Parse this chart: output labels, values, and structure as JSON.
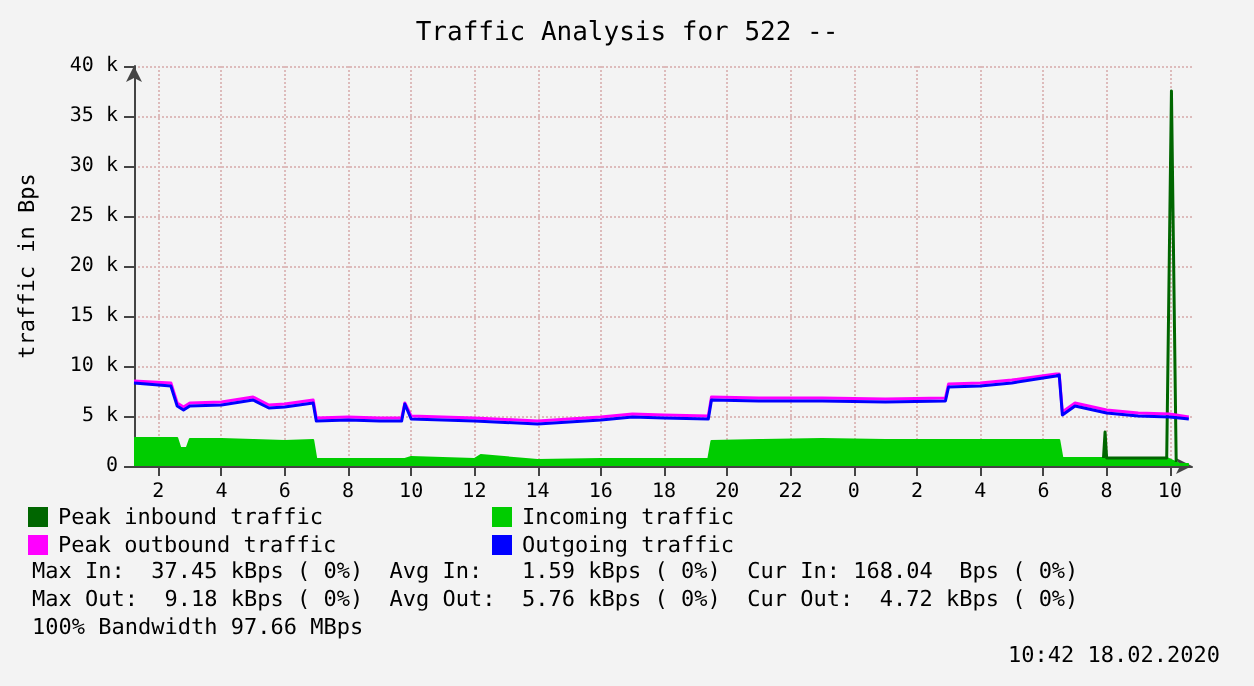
{
  "chart_data": {
    "type": "line",
    "title": "Traffic Analysis for 522 --",
    "ylabel": "traffic in Bps",
    "xlim": [
      "2020-02-17T01:14",
      "2020-02-18T10:42"
    ],
    "xticks": [
      {
        "value": "2020-02-17T02:00",
        "label": "2"
      },
      {
        "value": "2020-02-17T04:00",
        "label": "4"
      },
      {
        "value": "2020-02-17T06:00",
        "label": "6"
      },
      {
        "value": "2020-02-17T08:00",
        "label": "8"
      },
      {
        "value": "2020-02-17T10:00",
        "label": "10"
      },
      {
        "value": "2020-02-17T12:00",
        "label": "12"
      },
      {
        "value": "2020-02-17T14:00",
        "label": "14"
      },
      {
        "value": "2020-02-17T16:00",
        "label": "16"
      },
      {
        "value": "2020-02-17T18:00",
        "label": "18"
      },
      {
        "value": "2020-02-17T20:00",
        "label": "20"
      },
      {
        "value": "2020-02-17T22:00",
        "label": "22"
      },
      {
        "value": "2020-02-18T00:00",
        "label": "0"
      },
      {
        "value": "2020-02-18T02:00",
        "label": "2"
      },
      {
        "value": "2020-02-18T04:00",
        "label": "4"
      },
      {
        "value": "2020-02-18T06:00",
        "label": "6"
      },
      {
        "value": "2020-02-18T08:00",
        "label": "8"
      },
      {
        "value": "2020-02-18T10:00",
        "label": "10"
      }
    ],
    "ylim": [
      0,
      40000
    ],
    "yticks": [
      0,
      {
        "value": 5000,
        "label": "5 k"
      },
      {
        "value": 10000,
        "label": "10 k"
      },
      {
        "value": 15000,
        "label": "15 k"
      },
      {
        "value": 20000,
        "label": "20 k"
      },
      {
        "value": 25000,
        "label": "25 k"
      },
      {
        "value": 30000,
        "label": "30 k"
      },
      {
        "value": 35000,
        "label": "35 k"
      },
      {
        "value": 40000,
        "label": "40 k"
      }
    ],
    "grid": true,
    "legend": "bottom",
    "marker": "none",
    "series": [
      {
        "name": "Incoming traffic",
        "type": "area",
        "color": "#00cc00",
        "x": [
          "2020-02-17T01:14",
          "2020-02-17T02:36",
          "2020-02-17T02:42",
          "2020-02-17T02:54",
          "2020-02-17T03:00",
          "2020-02-17T04:00",
          "2020-02-17T05:00",
          "2020-02-17T06:00",
          "2020-02-17T06:54",
          "2020-02-17T07:00",
          "2020-02-17T09:00",
          "2020-02-17T09:48",
          "2020-02-17T10:00",
          "2020-02-17T12:00",
          "2020-02-17T12:12",
          "2020-02-17T14:00",
          "2020-02-17T16:00",
          "2020-02-17T18:00",
          "2020-02-17T19:24",
          "2020-02-17T19:30",
          "2020-02-17T21:00",
          "2020-02-17T23:00",
          "2020-02-18T01:00",
          "2020-02-18T03:00",
          "2020-02-18T05:00",
          "2020-02-18T06:30",
          "2020-02-18T06:36",
          "2020-02-18T07:54",
          "2020-02-18T09:00",
          "2020-02-18T09:54",
          "2020-02-18T10:18",
          "2020-02-18T10:36"
        ],
        "values": [
          2800,
          2800,
          1800,
          1800,
          2700,
          2700,
          2600,
          2500,
          2600,
          700,
          700,
          700,
          900,
          700,
          1100,
          600,
          700,
          700,
          700,
          2500,
          2600,
          2700,
          2600,
          2600,
          2600,
          2600,
          800,
          800,
          700,
          800,
          200,
          200
        ]
      },
      {
        "name": "Peak inbound traffic",
        "color": "#006600",
        "x": [
          "2020-02-18T07:54",
          "2020-02-18T07:57",
          "2020-02-18T08:00",
          "2020-02-18T09:54",
          "2020-02-18T10:03",
          "2020-02-18T10:12"
        ],
        "values": [
          800,
          3400,
          800,
          800,
          37500,
          400
        ]
      },
      {
        "name": "Peak outbound traffic",
        "color": "#ff00ff",
        "x": [
          "2020-02-17T01:14",
          "2020-02-17T02:24",
          "2020-02-17T02:36",
          "2020-02-17T02:48",
          "2020-02-17T03:00",
          "2020-02-17T04:00",
          "2020-02-17T05:00",
          "2020-02-17T05:30",
          "2020-02-17T06:00",
          "2020-02-17T06:54",
          "2020-02-17T07:00",
          "2020-02-17T08:00",
          "2020-02-17T09:00",
          "2020-02-17T09:42",
          "2020-02-17T09:48",
          "2020-02-17T10:00",
          "2020-02-17T12:00",
          "2020-02-17T14:00",
          "2020-02-17T16:00",
          "2020-02-17T17:00",
          "2020-02-17T18:00",
          "2020-02-17T19:24",
          "2020-02-17T19:30",
          "2020-02-17T21:00",
          "2020-02-17T23:00",
          "2020-02-18T01:00",
          "2020-02-18T02:54",
          "2020-02-18T03:00",
          "2020-02-18T04:00",
          "2020-02-18T05:00",
          "2020-02-18T06:24",
          "2020-02-18T06:30",
          "2020-02-18T06:36",
          "2020-02-18T07:00",
          "2020-02-18T08:00",
          "2020-02-18T09:00",
          "2020-02-18T10:00",
          "2020-02-18T10:36"
        ],
        "values": [
          8500,
          8300,
          6300,
          5900,
          6300,
          6400,
          6900,
          6100,
          6200,
          6600,
          4800,
          4900,
          4800,
          4800,
          6300,
          5000,
          4800,
          4500,
          4900,
          5200,
          5100,
          5000,
          6900,
          6800,
          6800,
          6700,
          6800,
          8200,
          8300,
          8600,
          9200,
          9200,
          5400,
          6300,
          5600,
          5300,
          5200,
          4900
        ]
      },
      {
        "name": "Outgoing traffic",
        "color": "#0000ff",
        "x": [
          "2020-02-17T01:14",
          "2020-02-17T02:24",
          "2020-02-17T02:36",
          "2020-02-17T02:48",
          "2020-02-17T03:00",
          "2020-02-17T04:00",
          "2020-02-17T05:00",
          "2020-02-17T05:30",
          "2020-02-17T06:00",
          "2020-02-17T06:54",
          "2020-02-17T07:00",
          "2020-02-17T08:00",
          "2020-02-17T09:00",
          "2020-02-17T09:42",
          "2020-02-17T09:48",
          "2020-02-17T10:00",
          "2020-02-17T12:00",
          "2020-02-17T14:00",
          "2020-02-17T16:00",
          "2020-02-17T17:00",
          "2020-02-17T18:00",
          "2020-02-17T19:24",
          "2020-02-17T19:30",
          "2020-02-17T21:00",
          "2020-02-17T23:00",
          "2020-02-18T01:00",
          "2020-02-18T02:54",
          "2020-02-18T03:00",
          "2020-02-18T04:00",
          "2020-02-18T05:00",
          "2020-02-18T06:24",
          "2020-02-18T06:30",
          "2020-02-18T06:36",
          "2020-02-18T07:00",
          "2020-02-18T08:00",
          "2020-02-18T09:00",
          "2020-02-18T10:00",
          "2020-02-18T10:36"
        ],
        "values": [
          8300,
          8000,
          6000,
          5600,
          6000,
          6100,
          6600,
          5800,
          5900,
          6300,
          4500,
          4600,
          4500,
          4500,
          6200,
          4700,
          4500,
          4200,
          4600,
          4900,
          4800,
          4700,
          6600,
          6500,
          6500,
          6400,
          6500,
          7900,
          8000,
          8300,
          9000,
          9100,
          5100,
          6000,
          5300,
          5000,
          4900,
          4700
        ]
      }
    ],
    "annotations": [
      "Max In:  37.45 kBps ( 0%)  Avg In:   1.59 kBps ( 0%)  Cur In: 168.04  Bps ( 0%)",
      "Max Out:  9.18 kBps ( 0%)  Avg Out:  5.76 kBps ( 0%)  Cur Out:  4.72 kBps ( 0%)",
      "100% Bandwidth 97.66 MBps",
      "10:42 18.02.2020"
    ]
  }
}
